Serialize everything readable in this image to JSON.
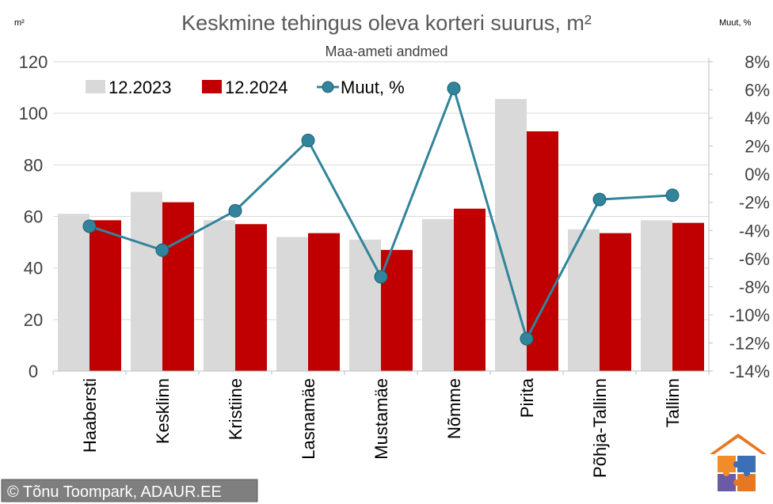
{
  "chart_data": {
    "type": "bar",
    "title": "Keskmine tehingus oleva korteri suurus, m²",
    "subtitle": "Maa-ameti andmed",
    "left_unit": "m²",
    "right_unit": "Muut, %",
    "categories": [
      "Haabersti",
      "Kesklinn",
      "Kristiine",
      "Lasnamäe",
      "Mustamäe",
      "Nõmme",
      "Pirita",
      "Põhja-Tallinn",
      "Tallinn"
    ],
    "series": [
      {
        "name": "12.2023",
        "type": "bar",
        "axis": "left",
        "color": "#d9d9d9",
        "values": [
          61.0,
          69.5,
          58.5,
          52.0,
          51.0,
          59.0,
          105.5,
          55.0,
          58.5
        ]
      },
      {
        "name": "12.2024",
        "type": "bar",
        "axis": "left",
        "color": "#c00000",
        "values": [
          58.5,
          65.5,
          57.0,
          53.5,
          47.0,
          63.0,
          93.0,
          53.5,
          57.5
        ]
      },
      {
        "name": "Muut, %",
        "type": "line",
        "axis": "right",
        "color": "#31849b",
        "values": [
          -3.7,
          -5.4,
          -2.6,
          2.4,
          -7.3,
          6.1,
          -11.7,
          -1.8,
          -1.5
        ]
      }
    ],
    "yleft": {
      "min": 0,
      "max": 120,
      "step": 20,
      "ticks": [
        "0",
        "20",
        "40",
        "60",
        "80",
        "100",
        "120"
      ]
    },
    "yright": {
      "min": -14,
      "max": 8,
      "step": 2,
      "ticks": [
        "-14%",
        "-12%",
        "-10%",
        "-8%",
        "-6%",
        "-4%",
        "-2%",
        "0%",
        "2%",
        "4%",
        "6%",
        "8%"
      ]
    },
    "grid": true,
    "legend_position": "top-left"
  },
  "credit": "© Tõnu Toompark, ADAUR.EE",
  "logo": {
    "roof_color": "#e87722",
    "piece_colors": [
      "#f28c28",
      "#3d6fb6",
      "#6a5aa8",
      "#e87722"
    ]
  }
}
